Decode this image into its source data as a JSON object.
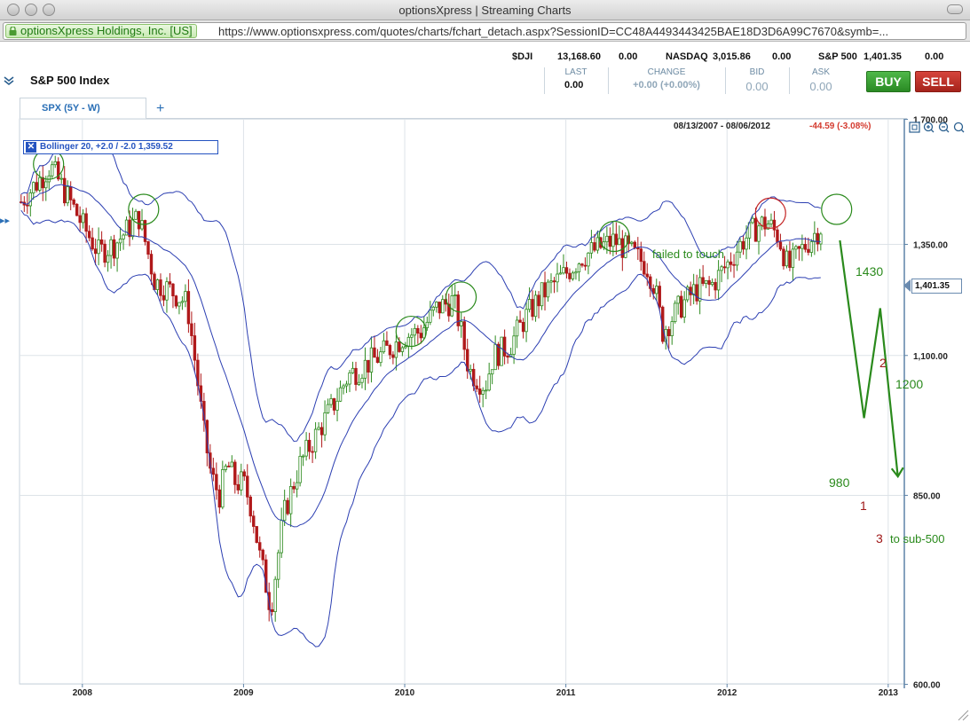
{
  "window": {
    "title": "optionsXpress | Streaming Charts"
  },
  "urlbar": {
    "site_identity": "optionsXpress Holdings, Inc. [US]",
    "url": "https://www.optionsxpress.com/quotes/charts/fchart_detach.aspx?SessionID=CC48A4493443425BAE18D3D6A99C7670&symb=..."
  },
  "tickers": [
    {
      "symbol": "$DJI",
      "price": "13,168.60",
      "change": "0.00"
    },
    {
      "symbol": "NASDAQ",
      "price": "3,015.86",
      "change": "0.00"
    },
    {
      "symbol": "S&P 500",
      "price": "1,401.35",
      "change": "0.00"
    }
  ],
  "quote": {
    "name": "S&P 500 Index",
    "last_label": "LAST",
    "last_value": "0.00",
    "change_label": "CHANGE",
    "change_value": "+0.00 (+0.00%)",
    "bid_label": "BID",
    "bid_value": "0.00",
    "ask_label": "ASK",
    "ask_value": "0.00",
    "buy_label": "BUY",
    "sell_label": "SELL"
  },
  "tabs": {
    "active_label": "SPX (5Y - W)",
    "add_label": "+"
  },
  "chart_header": {
    "date_range": "08/13/2007 - 08/06/2012",
    "change": "-44.59 (-3.08%)",
    "indicator": "Bollinger 20,  +2.0  / -2.0 1,359.52",
    "current_price_tag": "1,401.35"
  },
  "colors": {
    "up_candle": "#2e8b1f",
    "down_candle": "#b0191a",
    "bands": "#2c3fb2",
    "annotation_green": "#2a8a1c",
    "annotation_red": "#a01818",
    "axis": "#5f84a8"
  },
  "chart_data": {
    "type": "line",
    "title": "",
    "xlabel": "",
    "ylabel": "",
    "y_scale": "log",
    "ylim": [
      600,
      1700
    ],
    "y_tick_labels": [
      "1,700.00",
      "1,350.00",
      "1,100.00",
      "850.00",
      "600.00"
    ],
    "y_ticks": [
      1700,
      1350,
      1100,
      850,
      600
    ],
    "x_tick_labels": [
      "2008",
      "2009",
      "2010",
      "2011",
      "2012",
      "2013"
    ],
    "x_ticks": [
      2008,
      2009,
      2010,
      2011,
      2012,
      2013
    ],
    "xlim": [
      2007.61,
      2013.1
    ],
    "grid": true,
    "series": [
      {
        "name": "SPX",
        "x": [
          2007.62,
          2007.75,
          2007.8,
          2007.9,
          2008.0,
          2008.1,
          2008.2,
          2008.35,
          2008.45,
          2008.55,
          2008.65,
          2008.75,
          2008.8,
          2008.85,
          2008.9,
          2008.95,
          2009.0,
          2009.05,
          2009.1,
          2009.17,
          2009.25,
          2009.35,
          2009.45,
          2009.55,
          2009.65,
          2009.75,
          2009.85,
          2010.0,
          2010.1,
          2010.2,
          2010.3,
          2010.33,
          2010.4,
          2010.5,
          2010.55,
          2010.65,
          2010.75,
          2010.85,
          2011.0,
          2011.1,
          2011.2,
          2011.3,
          2011.4,
          2011.5,
          2011.55,
          2011.6,
          2011.7,
          2011.8,
          2011.9,
          2012.0,
          2012.1,
          2012.2,
          2012.25,
          2012.32,
          2012.38,
          2012.45,
          2012.55,
          2012.6
        ],
        "values": [
          1460,
          1530,
          1560,
          1480,
          1400,
          1330,
          1350,
          1420,
          1260,
          1240,
          1210,
          960,
          880,
          850,
          900,
          870,
          870,
          830,
          760,
          690,
          820,
          900,
          950,
          1000,
          1060,
          1080,
          1100,
          1140,
          1150,
          1200,
          1217,
          1180,
          1070,
          1040,
          1100,
          1120,
          1180,
          1230,
          1280,
          1320,
          1340,
          1360,
          1330,
          1300,
          1250,
          1150,
          1200,
          1240,
          1250,
          1300,
          1360,
          1400,
          1405,
          1370,
          1290,
          1330,
          1380,
          1401
        ]
      }
    ],
    "annotations": [
      {
        "text": "failed to touch",
        "color": "green"
      },
      {
        "text": "1430",
        "color": "green"
      },
      {
        "text": "2",
        "color": "red"
      },
      {
        "text": "1200",
        "color": "green"
      },
      {
        "text": "980",
        "color": "green"
      },
      {
        "text": "1",
        "color": "red"
      },
      {
        "text": "3",
        "color": "red"
      },
      {
        "text": "to sub-500",
        "color": "green"
      }
    ]
  }
}
